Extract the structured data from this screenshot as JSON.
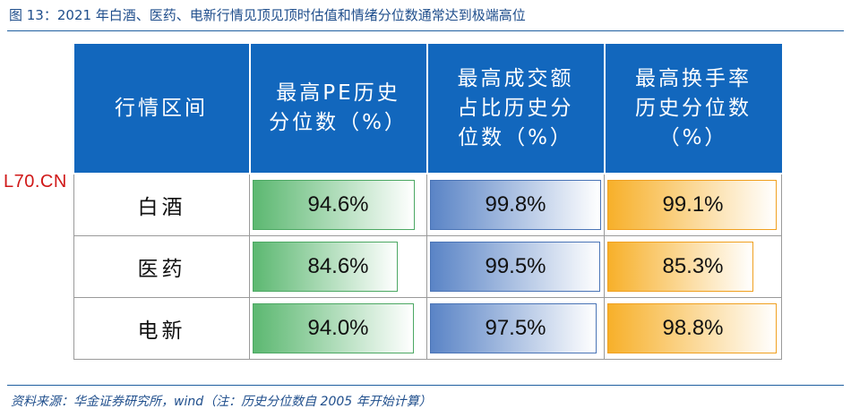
{
  "figure": {
    "title": "图 13：2021 年白酒、医药、电新行情见顶见顶时估值和情绪分位数通常达到极端高位",
    "source": "资料来源：华金证券研究所，wind（注：历史分位数自 2005 年开始计算）"
  },
  "watermark": "L70.CN",
  "table": {
    "headers": {
      "sector": "行情区间",
      "pe_l1": "最高PE历史",
      "pe_l2": "分位数（%）",
      "turnover_l1": "最高成交额",
      "turnover_l2": "占比历史分",
      "turnover_l3": "位数（%）",
      "handover_l1": "最高换手率",
      "handover_l2": "历史分位数",
      "handover_l3": "（%）"
    },
    "rows": [
      {
        "sector": "白酒",
        "pe": "94.6%",
        "turnover": "99.8%",
        "handover": "99.1%"
      },
      {
        "sector": "医药",
        "pe": "84.6%",
        "turnover": "99.5%",
        "handover": "85.3%"
      },
      {
        "sector": "电新",
        "pe": "94.0%",
        "turnover": "97.5%",
        "handover": "98.8%"
      }
    ]
  },
  "colors": {
    "header_bg": "#1267bd",
    "pe_bar": "#5cb871",
    "turnover_bar": "#5a84c6",
    "handover_bar": "#f7b02a",
    "watermark": "#d01818"
  }
}
